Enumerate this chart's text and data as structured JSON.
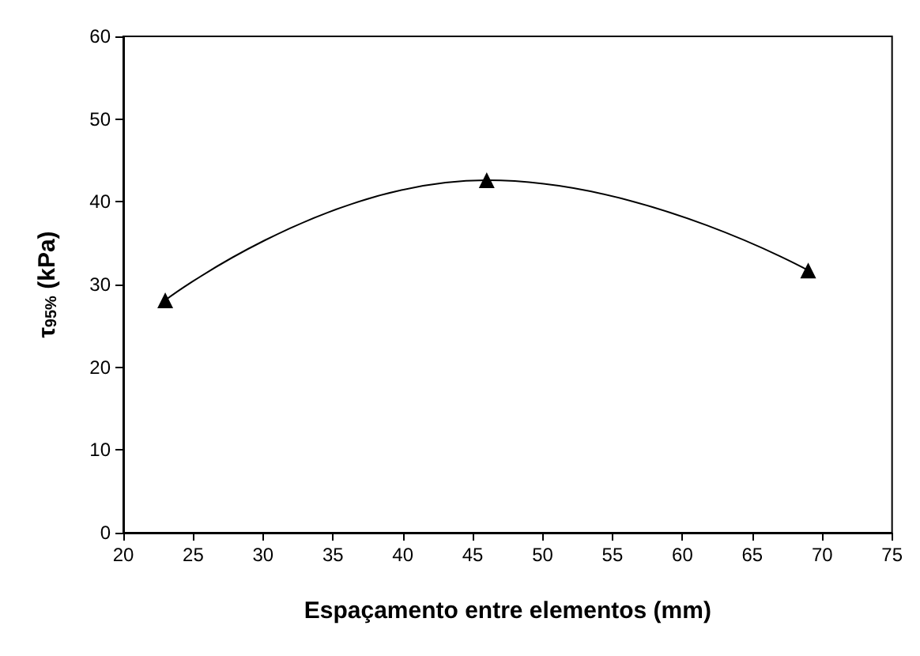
{
  "chart_data": {
    "type": "line",
    "xlabel": "Espaçamento entre elementos (mm)",
    "ylabel": "τ$_{95%}$ (kPa)",
    "x": [
      23,
      46,
      69
    ],
    "series": [
      {
        "color": "#000000",
        "values": [
          28.1,
          42.6,
          31.7
        ]
      }
    ],
    "xlim": [
      20,
      75
    ],
    "xticks": [
      20,
      25,
      30,
      35,
      40,
      45,
      50,
      55,
      60,
      65,
      70,
      75
    ],
    "ylim": [
      0,
      60
    ],
    "yticks": [
      0,
      10,
      20,
      30,
      40,
      50,
      60
    ],
    "grid": false,
    "marker": "triangle",
    "line_style": "solid"
  }
}
